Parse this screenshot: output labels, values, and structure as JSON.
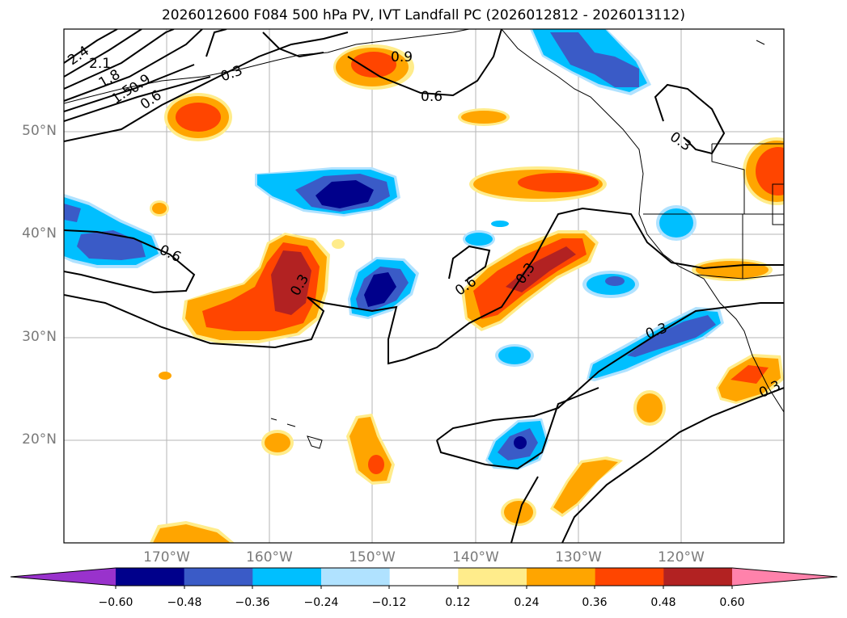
{
  "figure": {
    "title": "2026012600 F084 500 hPa PV, IVT Landfall PC (2026012812 - 2026013112)"
  },
  "axes": {
    "x_ticks": [
      "170°W",
      "160°W",
      "150°W",
      "140°W",
      "130°W",
      "120°W"
    ],
    "y_ticks": [
      "50°N",
      "40°N",
      "30°N",
      "20°N"
    ],
    "lon_range": [
      -180,
      -110
    ],
    "lat_range": [
      10,
      60
    ],
    "grid": true
  },
  "contour_labels": [
    "2.4",
    "2.1",
    "1.8",
    "1.5",
    "0.9",
    "0.6",
    "0.3",
    "0.9",
    "0.6",
    "0.6",
    "0.3",
    "0.6",
    "0.3",
    "0.3",
    "0.3",
    "0.3"
  ],
  "colorbar": {
    "ticks": [
      "−0.60",
      "−0.48",
      "−0.36",
      "−0.24",
      "−0.12",
      "0.12",
      "0.24",
      "0.36",
      "0.48",
      "0.60"
    ],
    "colors": [
      "#9932cc",
      "#00008b",
      "#3a5bc7",
      "#00bfff",
      "#b0e2ff",
      "#ffffff",
      "#ffec8b",
      "#ffa500",
      "#ff4500",
      "#b22222",
      "#ff82ab"
    ]
  }
}
